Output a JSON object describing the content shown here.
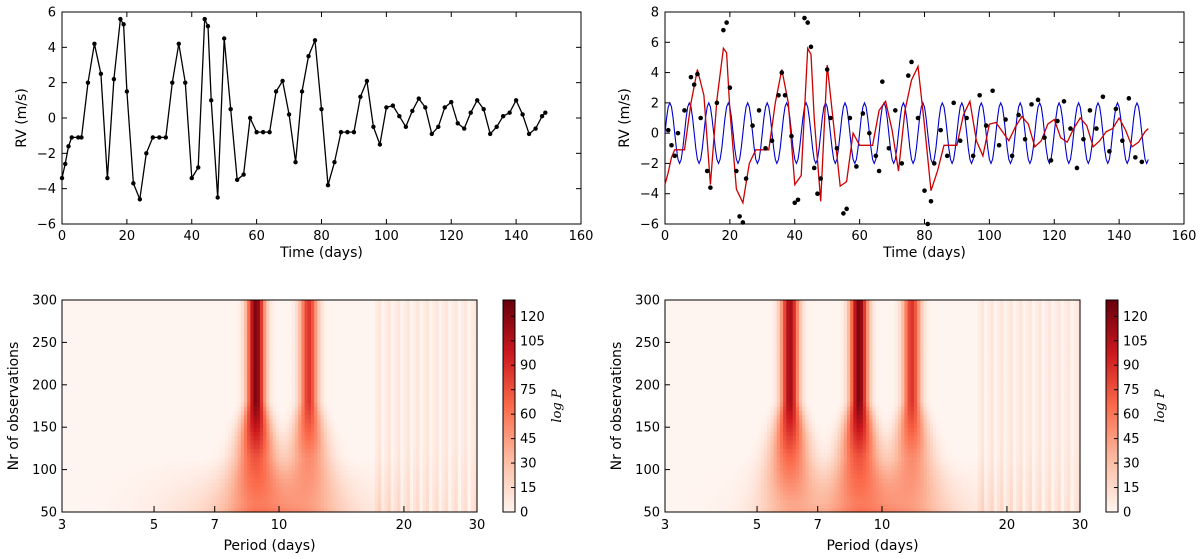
{
  "chart_data": [
    {
      "type": "line",
      "panel": "top-left",
      "xlabel": "Time (days)",
      "ylabel": "RV (m/s)",
      "xlim": [
        0,
        160
      ],
      "ylim": [
        -6,
        6
      ],
      "xticks": [
        "0",
        "20",
        "40",
        "60",
        "80",
        "100",
        "120",
        "140",
        "160"
      ],
      "yticks": [
        "−6",
        "−4",
        "−2",
        "0",
        "2",
        "4",
        "6"
      ],
      "series": [
        {
          "color": "#000000",
          "markers": true,
          "x": [
            0,
            1,
            2,
            3,
            5,
            6,
            8,
            10,
            12,
            14,
            16,
            18,
            19,
            20,
            22,
            24,
            26,
            28,
            30,
            32,
            34,
            36,
            38,
            40,
            42,
            44,
            45,
            46,
            48,
            50,
            52,
            54,
            56,
            58,
            60,
            62,
            64,
            66,
            68,
            70,
            72,
            74,
            76,
            78,
            80,
            82,
            84,
            86,
            88,
            90,
            92,
            94,
            96,
            98,
            100,
            102,
            104,
            106,
            108,
            110,
            112,
            114,
            116,
            118,
            120,
            122,
            124,
            126,
            128,
            130,
            132,
            134,
            136,
            138,
            140,
            142,
            144,
            146,
            148,
            149
          ],
          "y": [
            -3.4,
            -2.6,
            -1.6,
            -1.1,
            -1.1,
            -1.1,
            2.0,
            4.2,
            2.5,
            -3.4,
            2.2,
            5.6,
            5.3,
            1.5,
            -3.7,
            -4.6,
            -2.0,
            -1.1,
            -1.1,
            -1.1,
            2.0,
            4.2,
            2.0,
            -3.4,
            -2.8,
            5.6,
            5.2,
            1.0,
            -4.5,
            4.5,
            0.5,
            -3.5,
            -3.2,
            0.0,
            -0.8,
            -0.8,
            -0.8,
            1.5,
            2.1,
            0.2,
            -2.5,
            1.5,
            3.5,
            4.4,
            0.5,
            -3.8,
            -2.5,
            -0.8,
            -0.8,
            -0.8,
            1.2,
            2.1,
            -0.5,
            -1.5,
            0.6,
            0.7,
            0.1,
            -0.5,
            0.4,
            1.1,
            0.6,
            -0.9,
            -0.5,
            0.6,
            0.9,
            -0.3,
            -0.6,
            0.3,
            1.0,
            0.5,
            -0.9,
            -0.5,
            0.1,
            0.3,
            1.0,
            0.2,
            -0.9,
            -0.6,
            0.1,
            0.3
          ]
        }
      ]
    },
    {
      "type": "scatter+line",
      "panel": "top-right",
      "xlabel": "Time (days)",
      "ylabel": "RV (m/s)",
      "xlim": [
        0,
        160
      ],
      "ylim": [
        -6,
        8
      ],
      "xticks": [
        "0",
        "20",
        "40",
        "60",
        "80",
        "100",
        "120",
        "140",
        "160"
      ],
      "yticks": [
        "−6",
        "−4",
        "−2",
        "0",
        "2",
        "4",
        "6",
        "8"
      ],
      "series": [
        {
          "kind": "line",
          "color": "#cc0000",
          "note": "same signal as the left panel",
          "ref": 0
        },
        {
          "kind": "sine",
          "color": "#0000cc",
          "amplitude": 2.0,
          "period_days": 6.0
        },
        {
          "kind": "points",
          "color": "#000000",
          "x": [
            1,
            2,
            3,
            4,
            6,
            8,
            9,
            10,
            11,
            13,
            14,
            16,
            18,
            19,
            20,
            22,
            23,
            24,
            25,
            27,
            29,
            31,
            33,
            35,
            36,
            37,
            39,
            40,
            41,
            43,
            44,
            45,
            46,
            47,
            48,
            50,
            51,
            53,
            55,
            56,
            57,
            59,
            61,
            63,
            65,
            66,
            67,
            69,
            71,
            73,
            75,
            76,
            78,
            80,
            81,
            82,
            83,
            85,
            87,
            89,
            91,
            93,
            95,
            97,
            99,
            101,
            103,
            105,
            107,
            109,
            111,
            113,
            115,
            117,
            119,
            121,
            123,
            125,
            127,
            129,
            131,
            133,
            135,
            137,
            139,
            141,
            143,
            145,
            147
          ],
          "y": [
            0.2,
            -0.8,
            -1.5,
            0.0,
            1.5,
            3.7,
            3.2,
            3.9,
            1.0,
            -2.5,
            -3.6,
            2.0,
            6.8,
            7.3,
            3.0,
            -2.5,
            -5.5,
            -5.9,
            -3.0,
            0.5,
            1.5,
            -1.0,
            -0.5,
            2.5,
            4.0,
            2.5,
            -0.2,
            -4.6,
            -4.4,
            7.6,
            7.3,
            5.7,
            -2.3,
            -4.0,
            -3.0,
            4.2,
            1.0,
            -1.0,
            -5.3,
            -5.0,
            1.0,
            -2.2,
            1.3,
            0.0,
            -1.5,
            -2.5,
            3.4,
            -1.0,
            1.5,
            -2.0,
            3.8,
            4.7,
            1.0,
            -3.8,
            -6.0,
            -4.5,
            -2.0,
            0.2,
            -1.5,
            2.0,
            -0.5,
            1.0,
            -1.5,
            2.5,
            0.5,
            2.8,
            -0.8,
            0.9,
            -1.5,
            1.2,
            -0.4,
            1.9,
            2.2,
            -0.3,
            -1.8,
            0.8,
            2.1,
            0.3,
            -2.3,
            -0.4,
            1.5,
            0.3,
            2.4,
            -1.2,
            1.6,
            -0.5,
            2.3,
            -1.6,
            -1.9
          ]
        }
      ]
    },
    {
      "type": "heatmap",
      "panel": "bottom-left",
      "xlabel": "Period (days)",
      "ylabel": "Nr of observations",
      "xscale": "log",
      "xlim": [
        3,
        30
      ],
      "ylim": [
        50,
        300
      ],
      "xticks": [
        "3",
        "5",
        "7",
        "10",
        "20",
        "30"
      ],
      "yticks": [
        "50",
        "100",
        "150",
        "200",
        "250",
        "300"
      ],
      "colorbar": {
        "label": "log P",
        "ticks": [
          "0",
          "15",
          "30",
          "45",
          "60",
          "75",
          "90",
          "105",
          "120"
        ],
        "max": 130
      },
      "peaks": [
        {
          "period": 8.8,
          "strength": 1.0
        },
        {
          "period": 11.8,
          "strength": 0.7
        }
      ]
    },
    {
      "type": "heatmap",
      "panel": "bottom-right",
      "xlabel": "Period (days)",
      "ylabel": "Nr of observations",
      "xscale": "log",
      "xlim": [
        3,
        30
      ],
      "ylim": [
        50,
        300
      ],
      "xticks": [
        "3",
        "5",
        "7",
        "10",
        "20",
        "30"
      ],
      "yticks": [
        "50",
        "100",
        "150",
        "200",
        "250",
        "300"
      ],
      "colorbar": {
        "label": "log P",
        "ticks": [
          "0",
          "15",
          "30",
          "45",
          "60",
          "75",
          "90",
          "105",
          "120"
        ],
        "max": 130
      },
      "peaks": [
        {
          "period": 6.0,
          "strength": 0.9
        },
        {
          "period": 8.8,
          "strength": 1.0
        },
        {
          "period": 11.8,
          "strength": 0.7
        }
      ]
    }
  ]
}
